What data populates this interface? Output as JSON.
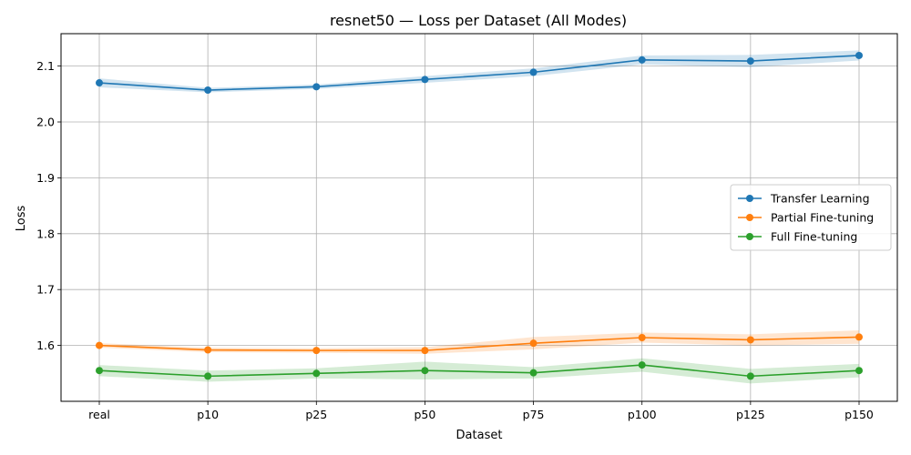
{
  "chart_data": {
    "type": "line",
    "title": "resnet50 — Loss per Dataset (All Modes)",
    "xlabel": "Dataset",
    "ylabel": "Loss",
    "categories": [
      "real",
      "p10",
      "p25",
      "p50",
      "p75",
      "p100",
      "p125",
      "p150"
    ],
    "ylim": [
      1.5,
      2.158
    ],
    "yticks": [
      1.6,
      1.7,
      1.8,
      1.9,
      2.0,
      2.1
    ],
    "grid": true,
    "legend_position": "center-right",
    "series": [
      {
        "name": "Transfer Learning",
        "color": "#1f77b4",
        "values": [
          2.07,
          2.057,
          2.063,
          2.076,
          2.089,
          2.111,
          2.109,
          2.119
        ],
        "band": [
          [
            2.062,
            2.078
          ],
          [
            2.053,
            2.061
          ],
          [
            2.059,
            2.067
          ],
          [
            2.07,
            2.082
          ],
          [
            2.082,
            2.096
          ],
          [
            2.103,
            2.119
          ],
          [
            2.098,
            2.12
          ],
          [
            2.11,
            2.128
          ]
        ]
      },
      {
        "name": "Partial Fine-tuning",
        "color": "#ff7f0e",
        "values": [
          1.6,
          1.592,
          1.591,
          1.591,
          1.604,
          1.614,
          1.61,
          1.615
        ],
        "band": [
          [
            1.596,
            1.604
          ],
          [
            1.588,
            1.596
          ],
          [
            1.587,
            1.595
          ],
          [
            1.585,
            1.597
          ],
          [
            1.593,
            1.615
          ],
          [
            1.605,
            1.623
          ],
          [
            1.6,
            1.62
          ],
          [
            1.603,
            1.627
          ]
        ]
      },
      {
        "name": "Full Fine-tuning",
        "color": "#2ca02c",
        "values": [
          1.555,
          1.545,
          1.55,
          1.555,
          1.551,
          1.565,
          1.545,
          1.555
        ],
        "band": [
          [
            1.545,
            1.565
          ],
          [
            1.535,
            1.555
          ],
          [
            1.541,
            1.559
          ],
          [
            1.539,
            1.571
          ],
          [
            1.541,
            1.561
          ],
          [
            1.553,
            1.577
          ],
          [
            1.532,
            1.558
          ],
          [
            1.543,
            1.567
          ]
        ]
      }
    ]
  }
}
